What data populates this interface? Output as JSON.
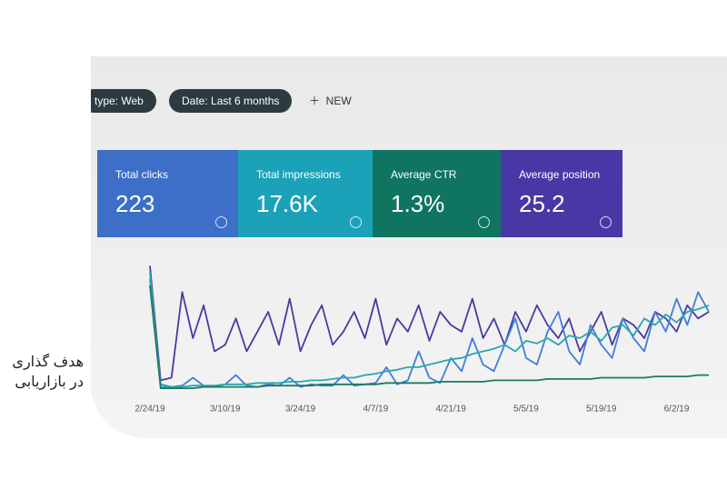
{
  "filters": [
    "type: Web",
    "Date: Last 6 months"
  ],
  "new_button": "NEW",
  "cards": [
    {
      "label": "Total clicks",
      "value": "223",
      "color": "#3d6fc8"
    },
    {
      "label": "Total impressions",
      "value": "17.6K",
      "color": "#1ba2b8"
    },
    {
      "label": "Average CTR",
      "value": "1.3%",
      "color": "#0f7560"
    },
    {
      "label": "Average position",
      "value": "25.2",
      "color": "#4838a6"
    }
  ],
  "caption": [
    "هدف گذاری",
    "در بازاریابی"
  ],
  "chart_data": {
    "type": "line",
    "categories": [
      "2/24/19",
      null,
      null,
      null,
      null,
      null,
      null,
      "3/10/19",
      null,
      null,
      null,
      null,
      null,
      null,
      "3/24/19",
      null,
      null,
      null,
      null,
      null,
      null,
      "4/7/19",
      null,
      null,
      null,
      null,
      null,
      null,
      "4/21/19",
      null,
      null,
      null,
      null,
      null,
      null,
      "5/5/19",
      null,
      null,
      null,
      null,
      null,
      null,
      "5/19/19",
      null,
      null,
      null,
      null,
      null,
      null,
      "6/2/19",
      null,
      null,
      null
    ],
    "ylim": [
      0,
      100
    ],
    "series": [
      {
        "color": "#4a3a9e",
        "values": [
          95,
          8,
          10,
          75,
          40,
          65,
          30,
          35,
          55,
          30,
          45,
          60,
          35,
          70,
          30,
          50,
          65,
          35,
          45,
          60,
          40,
          70,
          35,
          55,
          45,
          65,
          38,
          60,
          50,
          45,
          70,
          40,
          55,
          35,
          60,
          45,
          65,
          50,
          40,
          55,
          30,
          45,
          60,
          35,
          55,
          50,
          40,
          60,
          55,
          45,
          65,
          55,
          60
        ]
      },
      {
        "color": "#3f7fd8",
        "values": [
          85,
          5,
          3,
          4,
          10,
          4,
          3,
          5,
          12,
          4,
          3,
          5,
          4,
          10,
          3,
          5,
          4,
          4,
          12,
          4,
          5,
          6,
          18,
          5,
          8,
          30,
          10,
          6,
          25,
          15,
          40,
          20,
          15,
          35,
          55,
          25,
          20,
          45,
          60,
          30,
          20,
          50,
          35,
          25,
          55,
          40,
          30,
          60,
          45,
          70,
          50,
          75,
          60
        ]
      },
      {
        "color": "#2aa6b0",
        "values": [
          90,
          3,
          3,
          3,
          4,
          4,
          4,
          5,
          5,
          5,
          6,
          6,
          6,
          7,
          7,
          8,
          8,
          9,
          10,
          10,
          12,
          13,
          15,
          16,
          18,
          18,
          20,
          22,
          24,
          25,
          28,
          30,
          32,
          35,
          30,
          38,
          36,
          40,
          35,
          42,
          40,
          45,
          38,
          48,
          50,
          42,
          55,
          50,
          58,
          52,
          60,
          62,
          65
        ]
      },
      {
        "color": "#1d7a5e",
        "values": [
          80,
          2,
          2,
          2,
          2,
          3,
          3,
          3,
          3,
          3,
          3,
          4,
          4,
          4,
          4,
          4,
          5,
          5,
          5,
          5,
          5,
          5,
          6,
          6,
          6,
          6,
          6,
          7,
          7,
          7,
          7,
          7,
          8,
          8,
          8,
          8,
          8,
          9,
          9,
          9,
          9,
          9,
          10,
          10,
          10,
          10,
          10,
          11,
          11,
          11,
          11,
          12,
          12
        ]
      }
    ]
  }
}
